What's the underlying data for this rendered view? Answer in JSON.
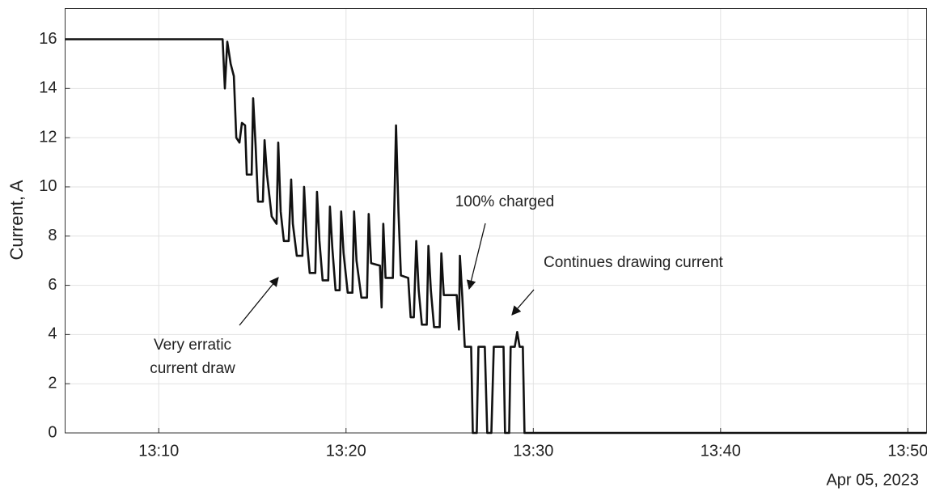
{
  "chart_data": {
    "type": "line",
    "ylabel": "Current, A",
    "x_sublabel": "Apr 05, 2023",
    "color": "#111111",
    "grid": true,
    "xlim": [
      785,
      831
    ],
    "ylim": [
      0,
      17.25
    ],
    "yticks": [
      0,
      2,
      4,
      6,
      8,
      10,
      12,
      14,
      16
    ],
    "xticks": [
      {
        "value": 790,
        "label": "13:10"
      },
      {
        "value": 800,
        "label": "13:20"
      },
      {
        "value": 810,
        "label": "13:30"
      },
      {
        "value": 820,
        "label": "13:40"
      },
      {
        "value": 830,
        "label": "13:50"
      }
    ],
    "annotations": [
      [
        "Very erratic",
        "current draw"
      ],
      [
        "100% charged"
      ],
      [
        "Continues drawing current"
      ]
    ],
    "x": [
      785,
      793.41,
      793.53,
      793.66,
      793.84,
      794.01,
      794.14,
      794.31,
      794.44,
      794.61,
      794.7,
      794.96,
      795.04,
      795.17,
      795.3,
      795.56,
      795.65,
      795.78,
      796.03,
      796.29,
      796.38,
      796.51,
      796.68,
      796.94,
      797.07,
      797.16,
      797.37,
      797.67,
      797.76,
      797.89,
      798.06,
      798.36,
      798.45,
      798.58,
      798.75,
      799.05,
      799.14,
      799.27,
      799.44,
      799.66,
      799.74,
      799.87,
      800.09,
      800.34,
      800.43,
      800.56,
      800.82,
      801.12,
      801.21,
      801.34,
      801.81,
      801.9,
      801.99,
      802.11,
      802.5,
      802.67,
      802.8,
      802.93,
      803.32,
      803.45,
      803.62,
      803.75,
      803.88,
      804.05,
      804.31,
      804.4,
      804.53,
      804.7,
      805.0,
      805.09,
      805.22,
      805.91,
      806.03,
      806.08,
      806.21,
      806.34,
      806.68,
      806.77,
      806.98,
      807.07,
      807.41,
      807.54,
      807.76,
      807.89,
      808.41,
      808.49,
      808.71,
      808.79,
      809.01,
      809.14,
      809.27,
      809.44,
      809.53,
      831
    ],
    "values": [
      16,
      16,
      14,
      15.9,
      15,
      14.5,
      12,
      11.8,
      12.6,
      12.5,
      10.5,
      10.5,
      13.6,
      11.7,
      9.4,
      9.4,
      11.9,
      10.5,
      8.8,
      8.5,
      11.8,
      9,
      7.8,
      7.8,
      10.3,
      8.5,
      7.2,
      7.2,
      10,
      8,
      6.5,
      6.5,
      9.8,
      7.8,
      6.2,
      6.2,
      9.2,
      7.5,
      5.8,
      5.8,
      9,
      7.3,
      5.7,
      5.7,
      9,
      7,
      5.5,
      5.5,
      8.9,
      6.9,
      6.8,
      5.1,
      8.5,
      6.3,
      6.3,
      12.5,
      9,
      6.4,
      6.3,
      4.7,
      4.7,
      7.8,
      5.8,
      4.4,
      4.4,
      7.6,
      5.8,
      4.3,
      4.3,
      7.3,
      5.6,
      5.6,
      4.2,
      7.2,
      5.5,
      3.5,
      3.5,
      0,
      0,
      3.5,
      3.5,
      0,
      0,
      3.5,
      3.5,
      0,
      0,
      3.5,
      3.5,
      4.1,
      3.5,
      3.5,
      0,
      0
    ]
  }
}
